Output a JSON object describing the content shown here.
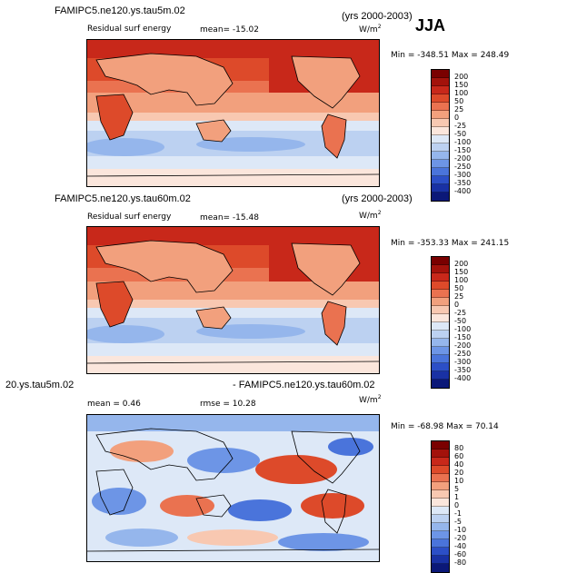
{
  "season": "JJA",
  "panels": [
    {
      "case_title": "FAMIPC5.ne120.ys.tau5m.02",
      "years": "(yrs 2000-2003)",
      "variable": "Residual surf energy",
      "stat_text": "mean=  -15.02",
      "units": "W/m",
      "units_exp": "2",
      "minmax": "Min = -348.51  Max = 248.49",
      "colorbar": {
        "labels": [
          "200",
          "150",
          "100",
          "50",
          "25",
          "0",
          "-25",
          "-50",
          "-100",
          "-150",
          "-200",
          "-250",
          "-300",
          "-350",
          "-400"
        ],
        "colors": [
          "#7a0000",
          "#a3120b",
          "#c8281a",
          "#dd4a2a",
          "#ea7250",
          "#f2a07d",
          "#f8c8b1",
          "#fbe6dc",
          "#dde8f7",
          "#bcd1f1",
          "#95b6ec",
          "#6d95e6",
          "#4a74db",
          "#2c4fc7",
          "#1931a4",
          "#0b1878"
        ]
      }
    },
    {
      "case_title": "FAMIPC5.ne120.ys.tau60m.02",
      "years": "(yrs 2000-2003)",
      "variable": "Residual surf energy",
      "stat_text": "mean=  -15.48",
      "units": "W/m",
      "units_exp": "2",
      "minmax": "Min = -353.33  Max = 241.15",
      "colorbar": {
        "labels": [
          "200",
          "150",
          "100",
          "50",
          "25",
          "0",
          "-25",
          "-50",
          "-100",
          "-150",
          "-200",
          "-250",
          "-300",
          "-350",
          "-400"
        ],
        "colors": [
          "#7a0000",
          "#a3120b",
          "#c8281a",
          "#dd4a2a",
          "#ea7250",
          "#f2a07d",
          "#f8c8b1",
          "#fbe6dc",
          "#dde8f7",
          "#bcd1f1",
          "#95b6ec",
          "#6d95e6",
          "#4a74db",
          "#2c4fc7",
          "#1931a4",
          "#0b1878"
        ]
      }
    },
    {
      "case_title_left": "20.ys.tau5m.02",
      "case_title_right": "- FAMIPC5.ne120.ys.tau60m.02",
      "mean_text": "mean =     0.46",
      "rmse_text": "rmse =   10.28",
      "units": "W/m",
      "units_exp": "2",
      "minmax": "Min = -68.98  Max =  70.14",
      "colorbar": {
        "labels": [
          "80",
          "60",
          "40",
          "20",
          "10",
          "5",
          "1",
          "0",
          "-1",
          "-5",
          "-10",
          "-20",
          "-40",
          "-60",
          "-80"
        ],
        "colors": [
          "#7a0000",
          "#a3120b",
          "#c8281a",
          "#dd4a2a",
          "#ea7250",
          "#f2a07d",
          "#f8c8b1",
          "#fbe6dc",
          "#dde8f7",
          "#bcd1f1",
          "#95b6ec",
          "#6d95e6",
          "#4a74db",
          "#2c4fc7",
          "#1931a4",
          "#0b1878"
        ]
      }
    }
  ]
}
